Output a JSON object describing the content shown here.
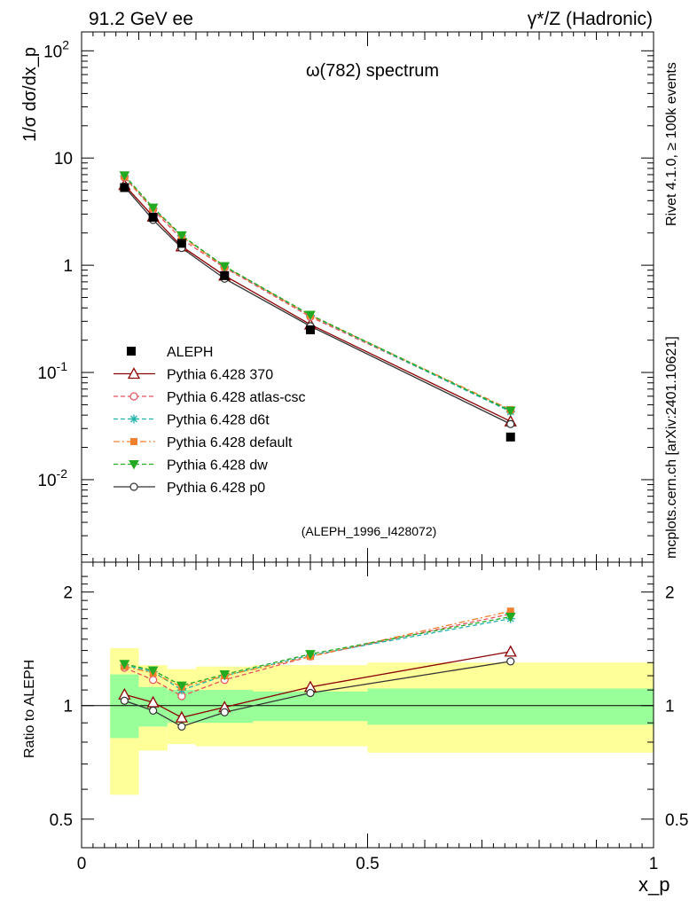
{
  "header": {
    "left": "91.2 GeV ee",
    "right": "γ*/Z (Hadronic)"
  },
  "side_labels": {
    "rivet": "Rivet 4.1.0, ≥ 100k events",
    "mcplots": "mcplots.cern.ch [arXiv:2401.10621]"
  },
  "chart_data": [
    {
      "type": "line",
      "title": "ω(782) spectrum",
      "watermark": "(ALEPH_1996_I428072)",
      "ylabel": "1/σ  dσ/dx_p",
      "yscale": "log",
      "ylim": [
        0.0017,
        150
      ],
      "xlim": [
        0,
        1
      ],
      "yticks": [
        {
          "value": 100,
          "label": "10^2"
        },
        {
          "value": 10,
          "label": "10"
        },
        {
          "value": 1,
          "label": "1"
        },
        {
          "value": 0.1,
          "label": "10^-1"
        },
        {
          "value": 0.01,
          "label": "10^-2"
        }
      ],
      "legend": "center-left",
      "data": {
        "name": "ALEPH",
        "x": [
          0.075,
          0.125,
          0.175,
          0.25,
          0.4,
          0.75
        ],
        "y": [
          5.3,
          2.8,
          1.6,
          0.8,
          0.25,
          0.025
        ]
      },
      "series": [
        {
          "name": "Pythia 6.428 370",
          "color": "#8b0000",
          "dash": "solid",
          "marker": "triangle-open",
          "y": [
            5.6,
            2.85,
            1.5,
            0.8,
            0.28,
            0.035
          ]
        },
        {
          "name": "Pythia 6.428 atlas-csc",
          "color": "#e8505b",
          "dash": "dashed",
          "marker": "circle-open",
          "y": [
            6.6,
            3.3,
            1.75,
            0.95,
            0.33,
            0.044
          ]
        },
        {
          "name": "Pythia 6.428 d6t",
          "color": "#20b2aa",
          "dash": "dashed",
          "marker": "asterisk",
          "y": [
            6.8,
            3.4,
            1.88,
            0.97,
            0.34,
            0.043
          ]
        },
        {
          "name": "Pythia 6.428 default",
          "color": "#f08030",
          "dash": "dashdot",
          "marker": "square-filled",
          "y": [
            6.7,
            3.4,
            1.85,
            0.97,
            0.34,
            0.045
          ]
        },
        {
          "name": "Pythia 6.428 dw",
          "color": "#22aa22",
          "dash": "dashed",
          "marker": "triangle-down-filled",
          "y": [
            6.9,
            3.45,
            1.9,
            0.98,
            0.345,
            0.044
          ]
        },
        {
          "name": "Pythia 6.428 p0",
          "color": "#333333",
          "dash": "solid",
          "marker": "circle-open",
          "y": [
            5.4,
            2.65,
            1.45,
            0.75,
            0.27,
            0.033
          ]
        }
      ]
    },
    {
      "type": "line",
      "title": "",
      "ylabel": "Ratio to ALEPH",
      "xlabel": "x_p",
      "yscale": "log",
      "ylim": [
        0.42,
        2.4
      ],
      "xlim": [
        0,
        1
      ],
      "yticks": [
        {
          "value": 0.5,
          "label": "0.5"
        },
        {
          "value": 1,
          "label": "1"
        },
        {
          "value": 2,
          "label": "2"
        }
      ],
      "xticks": [
        {
          "value": 0,
          "label": "0"
        },
        {
          "value": 0.5,
          "label": "0.5"
        },
        {
          "value": 1,
          "label": "1"
        }
      ],
      "bands": [
        {
          "x0": 0.05,
          "x1": 0.1,
          "stat_lo": 0.82,
          "stat_hi": 1.21,
          "tot_lo": 0.58,
          "tot_hi": 1.42
        },
        {
          "x0": 0.1,
          "x1": 0.15,
          "stat_lo": 0.88,
          "stat_hi": 1.12,
          "tot_lo": 0.76,
          "tot_hi": 1.28
        },
        {
          "x0": 0.15,
          "x1": 0.2,
          "stat_lo": 0.9,
          "stat_hi": 1.1,
          "tot_lo": 0.79,
          "tot_hi": 1.25
        },
        {
          "x0": 0.2,
          "x1": 0.3,
          "stat_lo": 0.9,
          "stat_hi": 1.1,
          "tot_lo": 0.78,
          "tot_hi": 1.27
        },
        {
          "x0": 0.3,
          "x1": 0.5,
          "stat_lo": 0.91,
          "stat_hi": 1.09,
          "tot_lo": 0.78,
          "tot_hi": 1.28
        },
        {
          "x0": 0.5,
          "x1": 1.0,
          "stat_lo": 0.89,
          "stat_hi": 1.11,
          "tot_lo": 0.75,
          "tot_hi": 1.3
        }
      ],
      "x": [
        0.075,
        0.125,
        0.175,
        0.25,
        0.4,
        0.75
      ],
      "series": [
        {
          "name": "Pythia 6.428 370",
          "y": [
            1.07,
            1.02,
            0.93,
            0.99,
            1.12,
            1.39
          ]
        },
        {
          "name": "Pythia 6.428 atlas-csc",
          "y": [
            1.26,
            1.17,
            1.06,
            1.17,
            1.35,
            1.75
          ]
        },
        {
          "name": "Pythia 6.428 d6t",
          "y": [
            1.28,
            1.23,
            1.1,
            1.2,
            1.36,
            1.7
          ]
        },
        {
          "name": "Pythia 6.428 default",
          "y": [
            1.27,
            1.22,
            1.12,
            1.2,
            1.35,
            1.78
          ]
        },
        {
          "name": "Pythia 6.428 dw",
          "y": [
            1.29,
            1.24,
            1.13,
            1.21,
            1.37,
            1.72
          ]
        },
        {
          "name": "Pythia 6.428 p0",
          "y": [
            1.03,
            0.97,
            0.88,
            0.96,
            1.08,
            1.31
          ]
        }
      ]
    }
  ]
}
